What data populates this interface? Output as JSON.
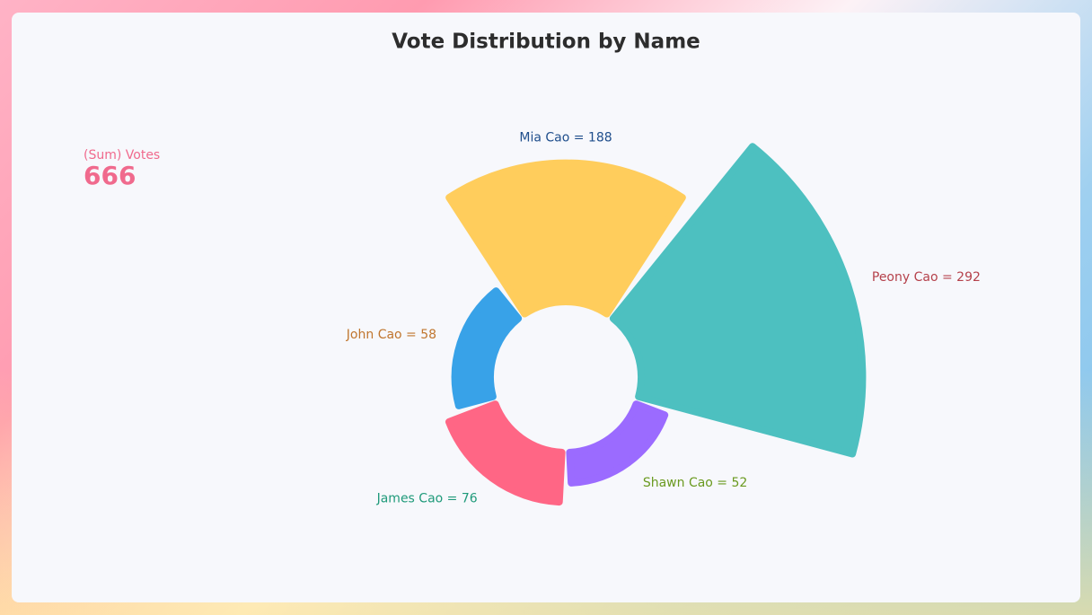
{
  "chart_data": {
    "type": "rose",
    "title": "Vote Distribution by Name",
    "summary": {
      "label": "(Sum) Votes",
      "value": 666
    },
    "categories": [
      "Mia Cao",
      "Peony Cao",
      "Shawn Cao",
      "James Cao",
      "John Cao"
    ],
    "values": [
      188,
      292,
      52,
      76,
      58
    ],
    "value_labels": [
      "Mia Cao = 188",
      "Peony Cao = 292",
      "Shawn Cao = 52",
      "James Cao = 76",
      "John Cao = 58"
    ],
    "colors": [
      "#ffcd5c",
      "#4dc0c0",
      "#9b6bff",
      "#ff6685",
      "#38a2e8"
    ],
    "label_colors": [
      "#1f4e8c",
      "#b5414b",
      "#6a9a1f",
      "#1f9a7a",
      "#c0762e"
    ]
  }
}
